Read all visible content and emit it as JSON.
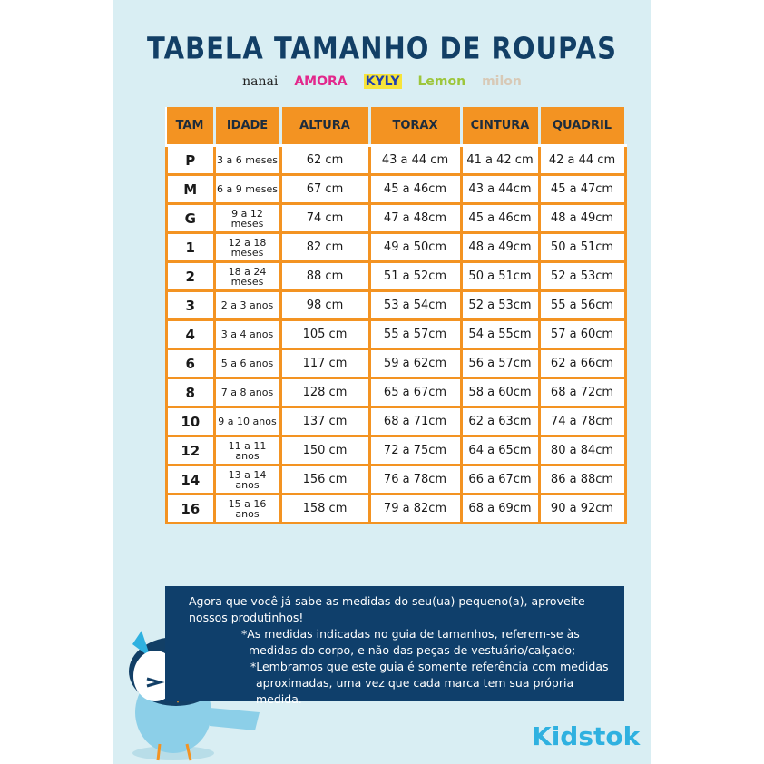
{
  "title": "TABELA TAMANHO DE ROUPAS",
  "brands": [
    "nanai",
    "AMORA",
    "KYLY",
    "Lemon",
    "milon"
  ],
  "table": {
    "headers": [
      "TAM",
      "IDADE",
      "ALTURA",
      "TORAX",
      "CINTURA",
      "QUADRIL"
    ],
    "rows": [
      [
        "P",
        "3 a 6 meses",
        "62 cm",
        "43 a 44 cm",
        "41 a 42 cm",
        "42 a 44 cm"
      ],
      [
        "M",
        "6 a 9 meses",
        "67 cm",
        "45 a 46cm",
        "43 a 44cm",
        "45 a 47cm"
      ],
      [
        "G",
        "9 a 12 meses",
        "74 cm",
        "47 a 48cm",
        "45 a 46cm",
        "48 a 49cm"
      ],
      [
        "1",
        "12 a 18 meses",
        "82 cm",
        "49 a 50cm",
        "48 a 49cm",
        "50 a 51cm"
      ],
      [
        "2",
        "18 a 24 meses",
        "88 cm",
        "51 a 52cm",
        "50 a 51cm",
        "52 a 53cm"
      ],
      [
        "3",
        "2 a 3 anos",
        "98 cm",
        "53 a 54cm",
        "52 a 53cm",
        "55 a 56cm"
      ],
      [
        "4",
        "3 a 4 anos",
        "105 cm",
        "55 a 57cm",
        "54 a 55cm",
        "57 a 60cm"
      ],
      [
        "6",
        "5 a 6 anos",
        "117 cm",
        "59 a 62cm",
        "56 a 57cm",
        "62 a 66cm"
      ],
      [
        "8",
        "7 a 8 anos",
        "128 cm",
        "65 a 67cm",
        "58 a 60cm",
        "68 a 72cm"
      ],
      [
        "10",
        "9 a 10 anos",
        "137 cm",
        "68 a 71cm",
        "62 a 63cm",
        "74 a 78cm"
      ],
      [
        "12",
        "11 a 11 anos",
        "150 cm",
        "72 a 75cm",
        "64 a 65cm",
        "80 a 84cm"
      ],
      [
        "14",
        "13 a 14 anos",
        "156 cm",
        "76 a 78cm",
        "66 a 67cm",
        "86 a 88cm"
      ],
      [
        "16",
        "15 a 16 anos",
        "158 cm",
        "79 a 82cm",
        "68 a 69cm",
        "90 a 92cm"
      ]
    ]
  },
  "footer": {
    "line1": "Agora que você já sabe as medidas do seu(ua) pequeno(a), aproveite",
    "line2": "nossos produtinhos!",
    "note1a": "*As medidas indicadas no guia de tamanhos, referem-se às",
    "note1b": "medidas do corpo, e não das peças de vestuário/calçado;",
    "note2a": "*Lembramos que este guia é somente referência com medidas",
    "note2b": "aproximadas, uma vez que cada marca tem sua própria medida."
  },
  "logo": "Kidstok",
  "colors": {
    "background": "#d9eef3",
    "title": "#123f66",
    "orange": "#f39322",
    "footer_bg": "#0f3f6b",
    "logo": "#2fb1e0"
  }
}
